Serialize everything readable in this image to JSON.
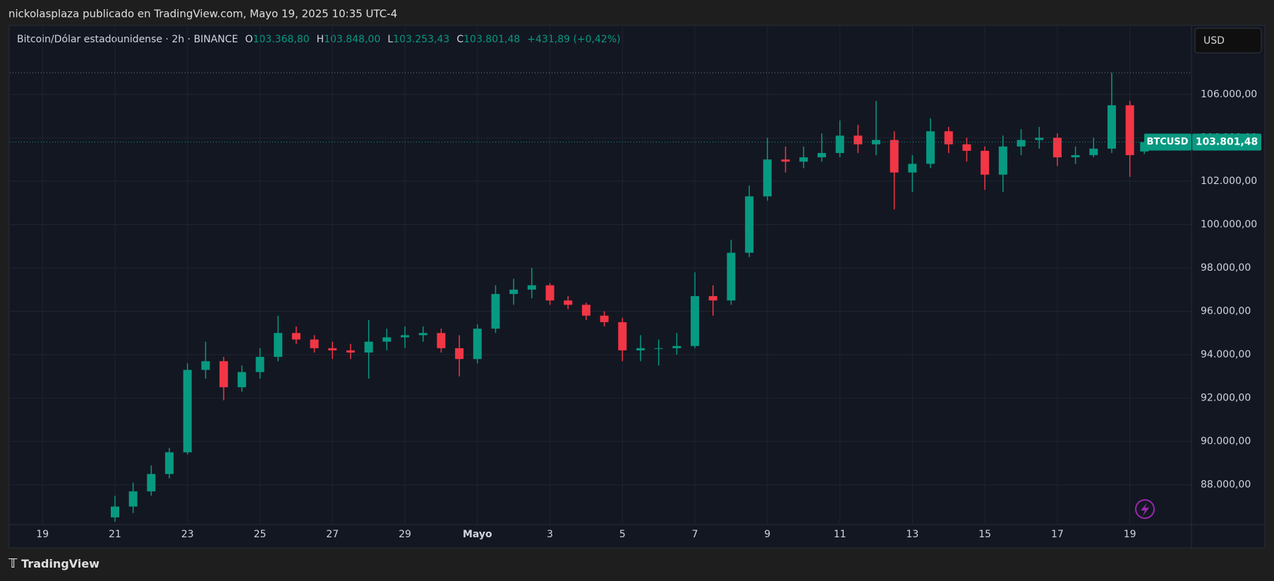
{
  "header": {
    "text": "nickolasplaza publicado en TradingView.com, Mayo 19, 2025 10:35 UTC-4"
  },
  "footer": {
    "logo": "TradingView"
  },
  "legend": {
    "symbol": "Bitcoin/Dólar estadounidense · 2h · BINANCE",
    "o_key": "O",
    "o": "103.368,80",
    "h_key": "H",
    "h": "103.848,00",
    "l_key": "L",
    "l": "103.253,43",
    "c_key": "C",
    "c": "103.801,48",
    "change": "+431,89 (+0,42%)"
  },
  "currency": "USD",
  "chart_data": {
    "type": "candlestick",
    "series": [
      {
        "name": "BTCUSD",
        "up_color": "#089981",
        "down_color": "#f23645",
        "last_price_label": "103.801,48",
        "x": [
          2,
          2.5,
          3,
          3.5,
          4,
          4.5,
          5,
          5.5,
          6,
          6.5,
          7,
          7.5,
          8,
          8.5,
          9,
          9.5,
          10,
          10.5,
          11,
          11.5,
          12,
          12.5,
          13,
          13.5,
          14,
          14.5,
          15,
          15.5,
          16,
          16.5,
          17,
          17.5,
          18,
          18.5,
          19,
          19.5,
          20,
          20.5,
          21,
          21.5,
          22,
          22.5,
          23,
          23.5,
          24,
          24.5,
          25,
          25.5,
          26,
          26.5,
          27,
          27.5,
          28,
          28.5,
          29,
          29.5,
          30,
          30.4
        ],
        "open": [
          86500,
          87000,
          87700,
          88500,
          89500,
          93300,
          93700,
          92500,
          93200,
          93900,
          95000,
          94700,
          94300,
          94200,
          94100,
          94600,
          94800,
          94900,
          95000,
          94300,
          93800,
          95200,
          96800,
          97000,
          97200,
          96500,
          96300,
          95800,
          95500,
          94200,
          94300,
          94300,
          94400,
          96700,
          96500,
          98700,
          101300,
          103000,
          102900,
          103100,
          103300,
          104100,
          103700,
          103900,
          102400,
          102800,
          104300,
          103700,
          103400,
          102300,
          103600,
          103900,
          104000,
          103100,
          103200,
          103500,
          105500,
          103368.8
        ],
        "high": [
          87500,
          88100,
          88900,
          89700,
          93600,
          94600,
          93900,
          93500,
          94300,
          95800,
          95300,
          94900,
          94600,
          94500,
          95600,
          95200,
          95300,
          95300,
          95200,
          94900,
          95400,
          97200,
          97500,
          98000,
          97300,
          96700,
          96400,
          96000,
          95700,
          94900,
          94700,
          95000,
          97800,
          97200,
          99300,
          101800,
          104000,
          103600,
          103600,
          104200,
          104800,
          104600,
          105700,
          104300,
          103200,
          104900,
          104500,
          104000,
          103600,
          104100,
          104400,
          104500,
          104200,
          103600,
          104000,
          107000,
          105700,
          103848
        ],
        "low": [
          86300,
          86700,
          87500,
          88300,
          89400,
          92900,
          91900,
          92300,
          92900,
          93700,
          94500,
          94100,
          93800,
          93800,
          92900,
          94200,
          94300,
          94600,
          94100,
          93000,
          93600,
          95000,
          96300,
          96600,
          96300,
          96100,
          95600,
          95300,
          93700,
          93700,
          93500,
          94000,
          94300,
          95800,
          96300,
          98500,
          101100,
          102400,
          102600,
          102900,
          103100,
          103300,
          103200,
          100700,
          101500,
          102600,
          103300,
          102900,
          101600,
          101500,
          103200,
          103500,
          102700,
          102800,
          103100,
          103300,
          102200,
          103253.43
        ],
        "close": [
          87000,
          87700,
          88500,
          89500,
          93300,
          93700,
          92500,
          93200,
          93900,
          95000,
          94700,
          94300,
          94200,
          94100,
          94600,
          94800,
          94900,
          95000,
          94300,
          93800,
          95200,
          96800,
          97000,
          97200,
          96500,
          96300,
          95800,
          95500,
          94200,
          94300,
          94300,
          94400,
          96700,
          96500,
          98700,
          101300,
          103000,
          102900,
          103100,
          103300,
          104100,
          103700,
          103900,
          102400,
          102800,
          104300,
          103700,
          103400,
          102300,
          103600,
          103900,
          104000,
          103100,
          103200,
          103500,
          105500,
          103200,
          103801.48
        ]
      }
    ],
    "xlim": [
      -0.9,
      31.7
    ],
    "xticks": [
      {
        "value": 0,
        "label": "19"
      },
      {
        "value": 2,
        "label": "21"
      },
      {
        "value": 4,
        "label": "23"
      },
      {
        "value": 6,
        "label": "25"
      },
      {
        "value": 8,
        "label": "27"
      },
      {
        "value": 10,
        "label": "29"
      },
      {
        "value": 12,
        "label": "Mayo"
      },
      {
        "value": 14,
        "label": "3"
      },
      {
        "value": 16,
        "label": "5"
      },
      {
        "value": 18,
        "label": "7"
      },
      {
        "value": 20,
        "label": "9"
      },
      {
        "value": 22,
        "label": "11"
      },
      {
        "value": 24,
        "label": "13"
      },
      {
        "value": 26,
        "label": "15"
      },
      {
        "value": 28,
        "label": "17"
      },
      {
        "value": 30,
        "label": "19"
      }
    ],
    "ylim": [
      86200,
      109150
    ],
    "yticks": [
      {
        "value": 88000,
        "label": "88.000,00"
      },
      {
        "value": 90000,
        "label": "90.000,00"
      },
      {
        "value": 92000,
        "label": "92.000,00"
      },
      {
        "value": 94000,
        "label": "94.000,00"
      },
      {
        "value": 96000,
        "label": "96.000,00"
      },
      {
        "value": 98000,
        "label": "98.000,00"
      },
      {
        "value": 100000,
        "label": "100.000,00"
      },
      {
        "value": 102000,
        "label": "102.000,00"
      },
      {
        "value": 104000,
        "label": "104.000,00"
      },
      {
        "value": 106000,
        "label": "106.000,00"
      }
    ],
    "grid": true
  }
}
